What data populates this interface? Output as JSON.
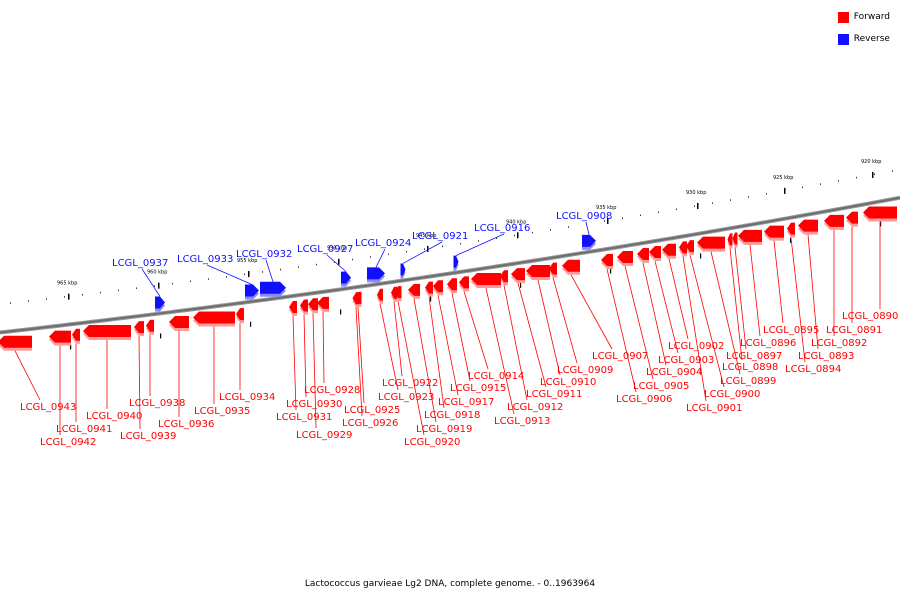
{
  "colors": {
    "forward": "#ff0000",
    "reverse": "#1010ff",
    "backbone": "#6e6e6e"
  },
  "legend": [
    {
      "key": "forward",
      "label": "Forward",
      "color": "#ff0000"
    },
    {
      "key": "reverse",
      "label": "Reverse",
      "color": "#1010ff"
    }
  ],
  "caption": "Lactococcus garvieae Lg2 DNA, complete genome. - 0..1963964",
  "ticks": [
    {
      "label": "920 kbp",
      "pos": 920
    },
    {
      "label": "925 kbp",
      "pos": 925
    },
    {
      "label": "930 kbp",
      "pos": 930
    },
    {
      "label": "935 kbp",
      "pos": 935
    },
    {
      "label": "940 kbp",
      "pos": 940
    },
    {
      "label": "945 kbp",
      "pos": 945
    },
    {
      "label": "950 kbp",
      "pos": 950
    },
    {
      "label": "955 kbp",
      "pos": 955
    },
    {
      "label": "960 kbp",
      "pos": 960
    },
    {
      "label": "965 kbp",
      "pos": 965
    }
  ],
  "genes": [
    {
      "name": "LCGL_0890",
      "strand": "forward"
    },
    {
      "name": "LCGL_0891",
      "strand": "forward"
    },
    {
      "name": "LCGL_0892",
      "strand": "forward"
    },
    {
      "name": "LCGL_0893",
      "strand": "forward"
    },
    {
      "name": "LCGL_0894",
      "strand": "forward"
    },
    {
      "name": "LCGL_0895",
      "strand": "forward"
    },
    {
      "name": "LCGL_0896",
      "strand": "forward"
    },
    {
      "name": "LCGL_0897",
      "strand": "forward"
    },
    {
      "name": "LCGL_0898",
      "strand": "forward"
    },
    {
      "name": "LCGL_0899",
      "strand": "forward"
    },
    {
      "name": "LCGL_0900",
      "strand": "forward"
    },
    {
      "name": "LCGL_0901",
      "strand": "forward"
    },
    {
      "name": "LCGL_0902",
      "strand": "forward"
    },
    {
      "name": "LCGL_0903",
      "strand": "forward"
    },
    {
      "name": "LCGL_0904",
      "strand": "forward"
    },
    {
      "name": "LCGL_0905",
      "strand": "forward"
    },
    {
      "name": "LCGL_0906",
      "strand": "forward"
    },
    {
      "name": "LCGL_0907",
      "strand": "forward"
    },
    {
      "name": "LCGL_0908",
      "strand": "reverse"
    },
    {
      "name": "LCGL_0909",
      "strand": "forward"
    },
    {
      "name": "LCGL_0910",
      "strand": "forward"
    },
    {
      "name": "LCGL_0911",
      "strand": "forward"
    },
    {
      "name": "LCGL_0912",
      "strand": "forward"
    },
    {
      "name": "LCGL_0913",
      "strand": "forward"
    },
    {
      "name": "LCGL_0914",
      "strand": "forward"
    },
    {
      "name": "LCGL_0915",
      "strand": "forward"
    },
    {
      "name": "LCGL_0916",
      "strand": "reverse"
    },
    {
      "name": "LCGL_0917",
      "strand": "forward"
    },
    {
      "name": "LCGL_0918",
      "strand": "forward"
    },
    {
      "name": "LCGL_0919",
      "strand": "forward"
    },
    {
      "name": "LCGL_0920",
      "strand": "forward"
    },
    {
      "name": "LCGL_0921",
      "strand": "reverse"
    },
    {
      "name": "LCGL_0922",
      "strand": "forward"
    },
    {
      "name": "LCGL_0923",
      "strand": "forward"
    },
    {
      "name": "LCGL_0924",
      "strand": "reverse"
    },
    {
      "name": "LCGL_0925",
      "strand": "forward"
    },
    {
      "name": "LCGL_0926",
      "strand": "forward"
    },
    {
      "name": "LCGL_0927",
      "strand": "reverse"
    },
    {
      "name": "LCGL_0928",
      "strand": "forward"
    },
    {
      "name": "LCGL_0929",
      "strand": "forward"
    },
    {
      "name": "LCGL_0930",
      "strand": "forward"
    },
    {
      "name": "LCGL_0931",
      "strand": "forward"
    },
    {
      "name": "LCGL_0932",
      "strand": "reverse"
    },
    {
      "name": "LCGL_0933",
      "strand": "reverse"
    },
    {
      "name": "LCGL_0934",
      "strand": "forward"
    },
    {
      "name": "LCGL_0935",
      "strand": "forward"
    },
    {
      "name": "LCGL_0936",
      "strand": "forward"
    },
    {
      "name": "LCGL_0937",
      "strand": "reverse"
    },
    {
      "name": "LCGL_0938",
      "strand": "forward"
    },
    {
      "name": "LCGL_0939",
      "strand": "forward"
    },
    {
      "name": "LCGL_0940",
      "strand": "forward"
    },
    {
      "name": "LCGL_0941",
      "strand": "forward"
    },
    {
      "name": "LCGL_0942",
      "strand": "forward"
    },
    {
      "name": "LCGL_0943",
      "strand": "forward"
    }
  ]
}
